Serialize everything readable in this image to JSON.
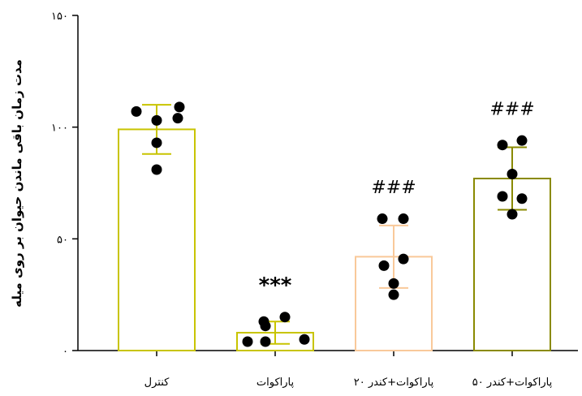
{
  "chart_data": {
    "type": "bar",
    "title": "",
    "xlabel": "",
    "ylabel": "مدت زمان باقی ماندن حیوان بر روی میله",
    "ylim": [
      0,
      150
    ],
    "yticks": [
      0,
      50,
      100,
      150
    ],
    "ytick_labels": [
      "۰",
      "۵۰",
      "۱۰۰",
      "۱۵۰"
    ],
    "grid": false,
    "categories": [
      "کنترل",
      "پاراکوات",
      "پاراکوات+کندر ۲۰",
      "پاراکوات+کندر ۵۰"
    ],
    "means": [
      99,
      8,
      42,
      77
    ],
    "sd": [
      11,
      5,
      14,
      14
    ],
    "points": [
      [
        107,
        109,
        103,
        104,
        93,
        81
      ],
      [
        4,
        11,
        13,
        15,
        4,
        5
      ],
      [
        59,
        59,
        38,
        41,
        30,
        25
      ],
      [
        92,
        94,
        79,
        69,
        68,
        61
      ]
    ],
    "annotations": [
      "",
      "***",
      "###",
      "###"
    ],
    "colors": [
      "#c8c400",
      "#c8c400",
      "#f9c99a",
      "#8a8a00"
    ]
  }
}
